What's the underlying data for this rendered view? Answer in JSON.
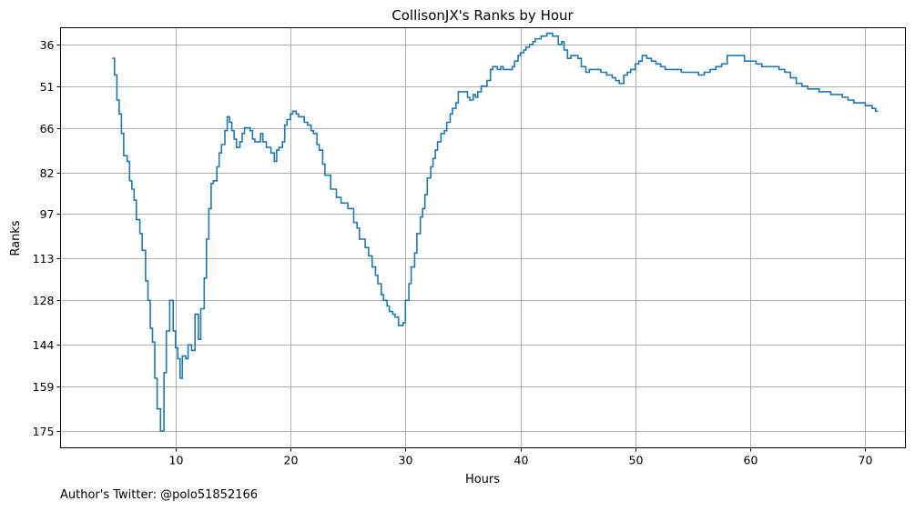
{
  "footnote": "Author's Twitter: @polo51852166",
  "chart_data": {
    "type": "line",
    "step": true,
    "title": "CollisonJX's Ranks by Hour",
    "xlabel": "Hours",
    "ylabel": "Ranks",
    "xlim": [
      0,
      73.5
    ],
    "ylim": [
      181,
      30
    ],
    "y_inverted": true,
    "x_ticks": [
      10,
      20,
      30,
      40,
      50,
      60,
      70
    ],
    "y_ticks": [
      36,
      51,
      66,
      82,
      97,
      113,
      128,
      144,
      159,
      175
    ],
    "grid": true,
    "series": [
      {
        "color": "#1f77b4",
        "points": [
          [
            4.5,
            41
          ],
          [
            4.7,
            47
          ],
          [
            4.9,
            56
          ],
          [
            5.1,
            61
          ],
          [
            5.3,
            68
          ],
          [
            5.5,
            76
          ],
          [
            5.8,
            78
          ],
          [
            6.0,
            85
          ],
          [
            6.2,
            88
          ],
          [
            6.4,
            92
          ],
          [
            6.6,
            99
          ],
          [
            6.9,
            104
          ],
          [
            7.1,
            110
          ],
          [
            7.4,
            121
          ],
          [
            7.6,
            128
          ],
          [
            7.8,
            138
          ],
          [
            8.0,
            143
          ],
          [
            8.2,
            156
          ],
          [
            8.4,
            167
          ],
          [
            8.7,
            175
          ],
          [
            9.0,
            154
          ],
          [
            9.2,
            139
          ],
          [
            9.5,
            128
          ],
          [
            9.8,
            139
          ],
          [
            10.0,
            145
          ],
          [
            10.2,
            149
          ],
          [
            10.4,
            156
          ],
          [
            10.6,
            148
          ],
          [
            10.9,
            149
          ],
          [
            11.1,
            144
          ],
          [
            11.4,
            146
          ],
          [
            11.7,
            133
          ],
          [
            12.0,
            142
          ],
          [
            12.2,
            131
          ],
          [
            12.5,
            120
          ],
          [
            12.7,
            106
          ],
          [
            12.9,
            95
          ],
          [
            13.1,
            86
          ],
          [
            13.3,
            85
          ],
          [
            13.6,
            80
          ],
          [
            13.8,
            75
          ],
          [
            14.0,
            72
          ],
          [
            14.3,
            67
          ],
          [
            14.5,
            62
          ],
          [
            14.7,
            64
          ],
          [
            14.9,
            67
          ],
          [
            15.1,
            70
          ],
          [
            15.3,
            73
          ],
          [
            15.6,
            71
          ],
          [
            15.8,
            68
          ],
          [
            16.0,
            66
          ],
          [
            16.2,
            66
          ],
          [
            16.5,
            67
          ],
          [
            16.7,
            70
          ],
          [
            16.9,
            71
          ],
          [
            17.2,
            71
          ],
          [
            17.4,
            68
          ],
          [
            17.6,
            71
          ],
          [
            17.9,
            73
          ],
          [
            18.1,
            73
          ],
          [
            18.3,
            75
          ],
          [
            18.6,
            78
          ],
          [
            18.8,
            74
          ],
          [
            19.0,
            73
          ],
          [
            19.3,
            71
          ],
          [
            19.5,
            65
          ],
          [
            19.7,
            63
          ],
          [
            20.0,
            61
          ],
          [
            20.2,
            60
          ],
          [
            20.5,
            61
          ],
          [
            20.7,
            62
          ],
          [
            21.0,
            62
          ],
          [
            21.2,
            64
          ],
          [
            21.5,
            65
          ],
          [
            21.8,
            67
          ],
          [
            22.0,
            68
          ],
          [
            22.3,
            72
          ],
          [
            22.5,
            74
          ],
          [
            22.8,
            79
          ],
          [
            23.0,
            83
          ],
          [
            23.5,
            88
          ],
          [
            24.0,
            91
          ],
          [
            24.4,
            93
          ],
          [
            25.0,
            95
          ],
          [
            25.5,
            100
          ],
          [
            25.8,
            102
          ],
          [
            26.0,
            106
          ],
          [
            26.5,
            109
          ],
          [
            26.8,
            112
          ],
          [
            27.1,
            116
          ],
          [
            27.4,
            119
          ],
          [
            27.6,
            122
          ],
          [
            27.9,
            126
          ],
          [
            28.1,
            128
          ],
          [
            28.4,
            130
          ],
          [
            28.6,
            132
          ],
          [
            28.9,
            133
          ],
          [
            29.1,
            134
          ],
          [
            29.4,
            137
          ],
          [
            29.8,
            136
          ],
          [
            30.0,
            128
          ],
          [
            30.3,
            122
          ],
          [
            30.5,
            116
          ],
          [
            30.8,
            111
          ],
          [
            31.0,
            104
          ],
          [
            31.3,
            98
          ],
          [
            31.5,
            95
          ],
          [
            31.7,
            90
          ],
          [
            31.9,
            84
          ],
          [
            32.2,
            80
          ],
          [
            32.4,
            77
          ],
          [
            32.6,
            74
          ],
          [
            32.8,
            71
          ],
          [
            33.1,
            68
          ],
          [
            33.4,
            67
          ],
          [
            33.6,
            64
          ],
          [
            33.9,
            61
          ],
          [
            34.1,
            59
          ],
          [
            34.4,
            57
          ],
          [
            34.6,
            53
          ],
          [
            35.1,
            53
          ],
          [
            35.4,
            55
          ],
          [
            35.6,
            56
          ],
          [
            35.9,
            54
          ],
          [
            36.1,
            55
          ],
          [
            36.3,
            53
          ],
          [
            36.6,
            51
          ],
          [
            36.8,
            51
          ],
          [
            37.1,
            49
          ],
          [
            37.4,
            45
          ],
          [
            37.6,
            44
          ],
          [
            38.0,
            45
          ],
          [
            38.3,
            44
          ],
          [
            38.5,
            45
          ],
          [
            38.8,
            45
          ],
          [
            39.0,
            45
          ],
          [
            39.3,
            44
          ],
          [
            39.5,
            42
          ],
          [
            39.8,
            40
          ],
          [
            40.0,
            39
          ],
          [
            40.3,
            38
          ],
          [
            40.5,
            37
          ],
          [
            40.8,
            36
          ],
          [
            41.1,
            35
          ],
          [
            41.3,
            34
          ],
          [
            41.6,
            34
          ],
          [
            41.8,
            33
          ],
          [
            42.1,
            33
          ],
          [
            42.3,
            32
          ],
          [
            42.6,
            32
          ],
          [
            42.8,
            33
          ],
          [
            43.1,
            33
          ],
          [
            43.3,
            36
          ],
          [
            43.6,
            35
          ],
          [
            43.8,
            38
          ],
          [
            44.1,
            41
          ],
          [
            44.4,
            40
          ],
          [
            44.6,
            40
          ],
          [
            45.0,
            41
          ],
          [
            45.3,
            44
          ],
          [
            45.7,
            46
          ],
          [
            46.0,
            45
          ],
          [
            46.5,
            45
          ],
          [
            47.0,
            46
          ],
          [
            47.5,
            47
          ],
          [
            48.0,
            48
          ],
          [
            48.3,
            49
          ],
          [
            48.6,
            50
          ],
          [
            49.0,
            47
          ],
          [
            49.3,
            46
          ],
          [
            49.6,
            45
          ],
          [
            50.0,
            43
          ],
          [
            50.3,
            42
          ],
          [
            50.6,
            40
          ],
          [
            51.0,
            41
          ],
          [
            51.4,
            42
          ],
          [
            51.8,
            43
          ],
          [
            52.2,
            44
          ],
          [
            52.6,
            45
          ],
          [
            53.0,
            45
          ],
          [
            53.5,
            45
          ],
          [
            54.0,
            46
          ],
          [
            54.5,
            46
          ],
          [
            55.0,
            46
          ],
          [
            55.5,
            47
          ],
          [
            56.0,
            46
          ],
          [
            56.5,
            45
          ],
          [
            57.0,
            44
          ],
          [
            57.5,
            43
          ],
          [
            58.0,
            40
          ],
          [
            58.5,
            40
          ],
          [
            59.0,
            40
          ],
          [
            59.5,
            42
          ],
          [
            60.0,
            42
          ],
          [
            60.5,
            43
          ],
          [
            61.0,
            44
          ],
          [
            61.5,
            44
          ],
          [
            62.0,
            44
          ],
          [
            62.5,
            45
          ],
          [
            63.0,
            46
          ],
          [
            63.5,
            48
          ],
          [
            64.0,
            50
          ],
          [
            64.5,
            51
          ],
          [
            65.0,
            52
          ],
          [
            65.5,
            52
          ],
          [
            66.0,
            53
          ],
          [
            66.5,
            53
          ],
          [
            67.0,
            54
          ],
          [
            67.5,
            54
          ],
          [
            68.0,
            55
          ],
          [
            68.5,
            56
          ],
          [
            69.0,
            57
          ],
          [
            69.5,
            57
          ],
          [
            70.0,
            58
          ],
          [
            70.3,
            58
          ],
          [
            70.6,
            59
          ],
          [
            70.9,
            60
          ],
          [
            71.1,
            60
          ]
        ]
      }
    ]
  }
}
